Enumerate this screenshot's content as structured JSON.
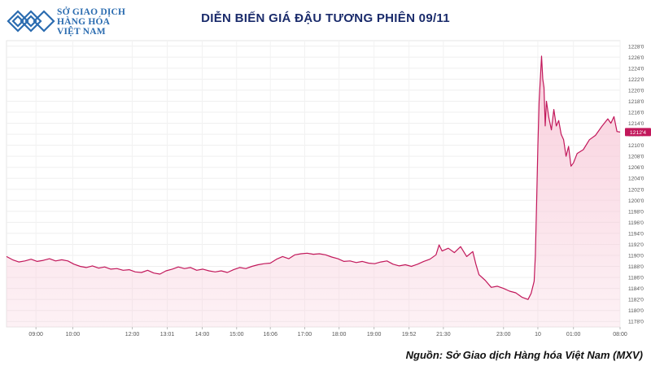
{
  "brand": {
    "lines": [
      "SỞ GIAO DỊCH",
      "HÀNG HÓA",
      "VIỆT NAM"
    ],
    "accent_color": "#2b6cb0"
  },
  "source_text": "Nguồn: Sở Giao dịch Hàng hóa Việt Nam (MXV)",
  "chart_data": {
    "type": "area",
    "title": "DIỄN BIẾN GIÁ ĐẬU TƯƠNG PHIÊN 09/11",
    "xlabel": "",
    "ylabel": "",
    "ylim": [
      1177,
      1229
    ],
    "y_ticks": [
      "1178'0",
      "1180'0",
      "1182'0",
      "1184'0",
      "1186'0",
      "1188'0",
      "1190'0",
      "1192'0",
      "1194'0",
      "1196'0",
      "1198'0",
      "1200'0",
      "1202'0",
      "1204'0",
      "1206'0",
      "1208'0",
      "1210'0",
      "1212'0",
      "1214'0",
      "1216'0",
      "1218'0",
      "1220'0",
      "1222'0",
      "1224'0",
      "1226'0",
      "1228'0"
    ],
    "y_tick_values": [
      1178,
      1180,
      1182,
      1184,
      1186,
      1188,
      1190,
      1192,
      1194,
      1196,
      1198,
      1200,
      1202,
      1204,
      1206,
      1208,
      1210,
      1212,
      1214,
      1216,
      1218,
      1220,
      1222,
      1224,
      1226,
      1228
    ],
    "x_ticks": [
      "09:00",
      "10:00",
      "12:00",
      "13:01",
      "14:00",
      "15:00",
      "16:06",
      "17:00",
      "18:00",
      "19:00",
      "19:52",
      "21:30",
      "23:00",
      "10",
      "01:00",
      "08:00"
    ],
    "x_tick_positions": [
      0.048,
      0.108,
      0.205,
      0.262,
      0.319,
      0.375,
      0.43,
      0.486,
      0.542,
      0.599,
      0.656,
      0.712,
      0.81,
      0.866,
      0.924,
      1.0
    ],
    "last_price_label": "1212'4",
    "line_color": "#c2185b",
    "fill_color": "#f8c9d8",
    "grid": true,
    "series": [
      {
        "points": [
          [
            0.0,
            1189.8
          ],
          [
            0.01,
            1189.2
          ],
          [
            0.02,
            1188.8
          ],
          [
            0.03,
            1189.0
          ],
          [
            0.04,
            1189.3
          ],
          [
            0.05,
            1188.9
          ],
          [
            0.06,
            1189.1
          ],
          [
            0.07,
            1189.4
          ],
          [
            0.08,
            1189.0
          ],
          [
            0.09,
            1189.2
          ],
          [
            0.1,
            1189.0
          ],
          [
            0.11,
            1188.4
          ],
          [
            0.12,
            1188.0
          ],
          [
            0.13,
            1187.8
          ],
          [
            0.14,
            1188.1
          ],
          [
            0.15,
            1187.7
          ],
          [
            0.16,
            1187.9
          ],
          [
            0.17,
            1187.5
          ],
          [
            0.18,
            1187.6
          ],
          [
            0.19,
            1187.3
          ],
          [
            0.2,
            1187.4
          ],
          [
            0.21,
            1187.0
          ],
          [
            0.22,
            1186.9
          ],
          [
            0.23,
            1187.3
          ],
          [
            0.24,
            1186.8
          ],
          [
            0.25,
            1186.6
          ],
          [
            0.26,
            1187.2
          ],
          [
            0.27,
            1187.5
          ],
          [
            0.28,
            1187.9
          ],
          [
            0.29,
            1187.6
          ],
          [
            0.3,
            1187.8
          ],
          [
            0.31,
            1187.3
          ],
          [
            0.32,
            1187.5
          ],
          [
            0.33,
            1187.2
          ],
          [
            0.34,
            1187.0
          ],
          [
            0.35,
            1187.2
          ],
          [
            0.36,
            1186.9
          ],
          [
            0.37,
            1187.4
          ],
          [
            0.38,
            1187.8
          ],
          [
            0.39,
            1187.6
          ],
          [
            0.4,
            1188.0
          ],
          [
            0.41,
            1188.3
          ],
          [
            0.42,
            1188.5
          ],
          [
            0.43,
            1188.6
          ],
          [
            0.44,
            1189.3
          ],
          [
            0.45,
            1189.8
          ],
          [
            0.46,
            1189.4
          ],
          [
            0.47,
            1190.1
          ],
          [
            0.48,
            1190.3
          ],
          [
            0.49,
            1190.4
          ],
          [
            0.5,
            1190.2
          ],
          [
            0.51,
            1190.3
          ],
          [
            0.52,
            1190.1
          ],
          [
            0.53,
            1189.7
          ],
          [
            0.54,
            1189.4
          ],
          [
            0.55,
            1188.9
          ],
          [
            0.56,
            1189.0
          ],
          [
            0.57,
            1188.7
          ],
          [
            0.58,
            1188.9
          ],
          [
            0.59,
            1188.6
          ],
          [
            0.6,
            1188.5
          ],
          [
            0.61,
            1188.8
          ],
          [
            0.62,
            1189.0
          ],
          [
            0.63,
            1188.4
          ],
          [
            0.64,
            1188.1
          ],
          [
            0.65,
            1188.3
          ],
          [
            0.66,
            1188.0
          ],
          [
            0.67,
            1188.4
          ],
          [
            0.68,
            1188.9
          ],
          [
            0.69,
            1189.3
          ],
          [
            0.7,
            1190.1
          ],
          [
            0.705,
            1191.9
          ],
          [
            0.71,
            1190.8
          ],
          [
            0.72,
            1191.3
          ],
          [
            0.73,
            1190.5
          ],
          [
            0.74,
            1191.6
          ],
          [
            0.75,
            1189.8
          ],
          [
            0.76,
            1190.7
          ],
          [
            0.765,
            1188.4
          ],
          [
            0.77,
            1186.5
          ],
          [
            0.78,
            1185.5
          ],
          [
            0.79,
            1184.2
          ],
          [
            0.8,
            1184.4
          ],
          [
            0.81,
            1184.0
          ],
          [
            0.82,
            1183.5
          ],
          [
            0.83,
            1183.2
          ],
          [
            0.84,
            1182.4
          ],
          [
            0.85,
            1182.0
          ],
          [
            0.855,
            1183.1
          ],
          [
            0.86,
            1185.3
          ],
          [
            0.862,
            1190.0
          ],
          [
            0.864,
            1200.0
          ],
          [
            0.866,
            1210.0
          ],
          [
            0.868,
            1218.0
          ],
          [
            0.872,
            1226.2
          ],
          [
            0.874,
            1222.0
          ],
          [
            0.876,
            1220.5
          ],
          [
            0.878,
            1213.5
          ],
          [
            0.88,
            1218.0
          ],
          [
            0.884,
            1215.0
          ],
          [
            0.888,
            1212.8
          ],
          [
            0.892,
            1216.5
          ],
          [
            0.896,
            1213.5
          ],
          [
            0.9,
            1214.5
          ],
          [
            0.904,
            1212.0
          ],
          [
            0.908,
            1211.0
          ],
          [
            0.912,
            1208.0
          ],
          [
            0.916,
            1209.8
          ],
          [
            0.92,
            1206.2
          ],
          [
            0.924,
            1206.8
          ],
          [
            0.93,
            1208.5
          ],
          [
            0.94,
            1209.2
          ],
          [
            0.95,
            1211.0
          ],
          [
            0.96,
            1211.8
          ],
          [
            0.97,
            1213.4
          ],
          [
            0.98,
            1214.8
          ],
          [
            0.985,
            1214.0
          ],
          [
            0.99,
            1215.2
          ],
          [
            0.995,
            1212.5
          ],
          [
            1.0,
            1212.4
          ]
        ]
      }
    ]
  }
}
